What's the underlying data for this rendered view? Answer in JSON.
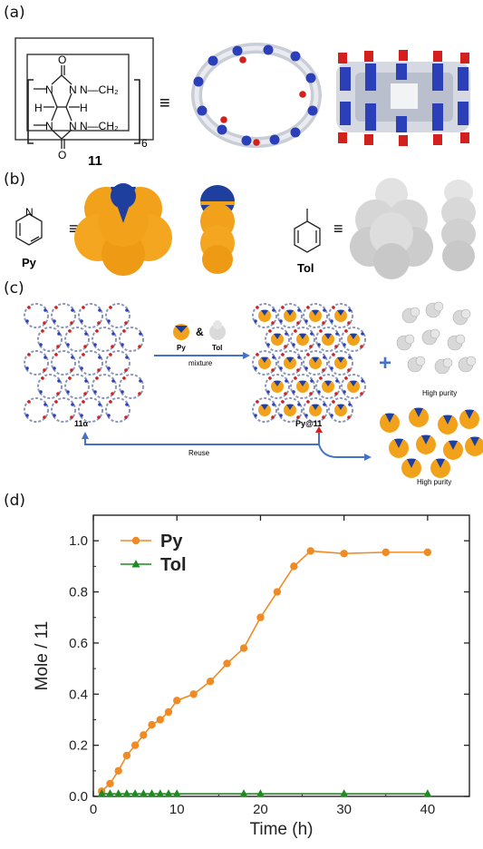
{
  "panels": {
    "a": {
      "label": "(a)",
      "structure": {
        "left_atoms": [
          "H",
          "H"
        ],
        "n_atoms": [
          "N",
          "N",
          "N",
          "N"
        ],
        "o_atoms": [
          "O",
          "O"
        ],
        "ch2_top": "N—CH₂",
        "ch2_bottom": "N—CH₂",
        "subscript": "6",
        "compound_number": "11"
      },
      "equiv": "≡"
    },
    "b": {
      "label": "(b)",
      "py_label": "Py",
      "py_n": "N",
      "tol_label": "Tol",
      "equiv": "≡"
    },
    "c": {
      "label": "(c)",
      "crystal_label": "11α",
      "py_small": "Py",
      "tol_small": "Tol",
      "amp": "&",
      "mixture": "mixture",
      "plus": "+",
      "complex_label": "Py@11",
      "high_purity_top": "High purity",
      "reuse": "Reuse",
      "high_purity_bottom": "High purity"
    },
    "d": {
      "label": "(d)"
    }
  },
  "colors": {
    "py_orange": "#F08A24",
    "tol_green": "#1F8A1F",
    "arrow_blue": "#4472C4",
    "sphere_orange": "#F2A21A",
    "sphere_blue": "#1E3F9E",
    "sphere_gray": "#D8D8D8"
  },
  "chart_data": {
    "type": "line",
    "xlabel": "Time (h)",
    "ylabel": "Mole / 11",
    "xlim": [
      0,
      45
    ],
    "ylim": [
      0,
      1.1
    ],
    "xticks": [
      0,
      10,
      20,
      30,
      40
    ],
    "yticks": [
      0.0,
      0.2,
      0.4,
      0.6,
      0.8,
      1.0
    ],
    "xtick_labels": [
      "0",
      "10",
      "20",
      "30",
      "40"
    ],
    "ytick_labels": [
      "0.0",
      "0.2",
      "0.4",
      "0.6",
      "0.8",
      "1.0"
    ],
    "legend_position": "top-left",
    "grid": false,
    "series": [
      {
        "name": "Py",
        "marker": "circle",
        "color": "#F08A24",
        "x": [
          1,
          2,
          3,
          4,
          5,
          6,
          7,
          8,
          9,
          10,
          12,
          14,
          16,
          18,
          20,
          22,
          24,
          26,
          30,
          35,
          40
        ],
        "y": [
          0.02,
          0.05,
          0.1,
          0.16,
          0.2,
          0.24,
          0.28,
          0.3,
          0.33,
          0.375,
          0.4,
          0.45,
          0.52,
          0.58,
          0.7,
          0.8,
          0.9,
          0.96,
          0.95,
          0.955,
          0.955
        ]
      },
      {
        "name": "Tol",
        "marker": "triangle",
        "color": "#1F8A1F",
        "x": [
          1,
          2,
          3,
          4,
          5,
          6,
          7,
          8,
          9,
          10,
          18,
          20,
          30,
          40
        ],
        "y": [
          0.01,
          0.01,
          0.01,
          0.01,
          0.01,
          0.01,
          0.01,
          0.01,
          0.01,
          0.01,
          0.01,
          0.01,
          0.01,
          0.01
        ]
      }
    ]
  }
}
